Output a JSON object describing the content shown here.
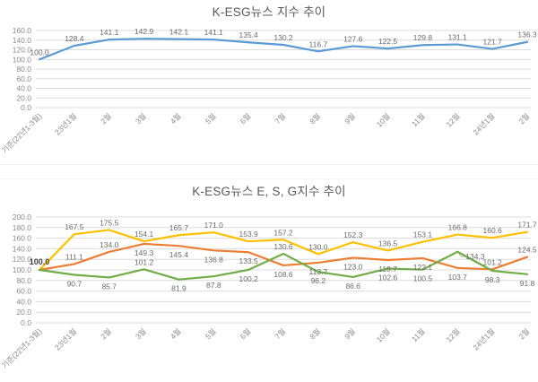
{
  "page": {
    "background": "#ffffff",
    "title_color": "#595959",
    "grid_color": "#dcdcdc",
    "label_color": "#6b6b6b",
    "axis_label_color": "#8c8c8c"
  },
  "chart_data": [
    {
      "type": "line",
      "title": "K-ESG뉴스 지수 추이",
      "xlabel": "",
      "ylabel": "",
      "ylim": [
        0,
        160
      ],
      "ystep": 20,
      "grid": true,
      "legend": "none",
      "x_axis_rotation": -45,
      "categories": [
        "기준(22년1-3월)",
        "23년1월",
        "2월",
        "3월",
        "4월",
        "5월",
        "6월",
        "7월",
        "8월",
        "9월",
        "10월",
        "11월",
        "12월",
        "24년1월",
        "2월"
      ],
      "series": [
        {
          "name": "K-ESG뉴스 지수",
          "color": "#5B9BD5",
          "values": [
            100.0,
            128.4,
            141.1,
            142.9,
            142.1,
            141.1,
            135.4,
            130.2,
            116.7,
            127.6,
            122.5,
            129.8,
            131.1,
            121.7,
            136.3
          ],
          "label_pos": [
            "a",
            "a",
            "a",
            "a",
            "a",
            "a",
            "a",
            "a",
            "a",
            "a",
            "a",
            "a",
            "a",
            "a",
            "a"
          ]
        }
      ]
    },
    {
      "type": "line",
      "title": "K-ESG뉴스  E, S, G지수 추이",
      "xlabel": "",
      "ylabel": "",
      "ylim": [
        0,
        200
      ],
      "ystep": 20,
      "grid": true,
      "legend": "none",
      "x_axis_rotation": -45,
      "origin_label": "100.0",
      "categories": [
        "기준(22년1-3월)",
        "23년1월",
        "2월",
        "3월",
        "4월",
        "5월",
        "6월",
        "7월",
        "8월",
        "9월",
        "10월",
        "11월",
        "12월",
        "24년1월",
        "2월"
      ],
      "series": [
        {
          "name": "series-yellow",
          "color": "#FFC000",
          "values": [
            100.0,
            167.5,
            175.5,
            154.1,
            165.7,
            171.0,
            153.9,
            157.2,
            130.0,
            152.3,
            136.5,
            153.1,
            166.8,
            160.6,
            171.7
          ],
          "label_pos": [
            null,
            "a",
            "a",
            "a",
            "a",
            "a",
            "a",
            "a",
            "a",
            "a",
            "a",
            "a",
            "a",
            "a",
            "a"
          ]
        },
        {
          "name": "series-orange",
          "color": "#ED7D31",
          "values": [
            100.0,
            111.1,
            134.0,
            149.3,
            145.4,
            136.8,
            133.5,
            108.6,
            113.7,
            123.0,
            118.7,
            122.1,
            103.7,
            101.2,
            124.5
          ],
          "label_pos": [
            null,
            "a",
            "a",
            "b",
            "b",
            "b",
            "b",
            "b",
            "b",
            "b",
            "b",
            "b",
            "b",
            "a",
            "a"
          ]
        },
        {
          "name": "series-green",
          "color": "#70AD47",
          "values": [
            100.0,
            90.7,
            85.7,
            101.2,
            81.9,
            87.8,
            100.2,
            130.6,
            96.2,
            86.6,
            102.6,
            100.5,
            134.3,
            98.3,
            91.8
          ],
          "label_pos": [
            null,
            "b",
            "b",
            "a",
            "b",
            "b",
            "b",
            "a",
            "b",
            "b",
            "b",
            "b",
            "r",
            "b",
            "b"
          ]
        }
      ]
    }
  ]
}
